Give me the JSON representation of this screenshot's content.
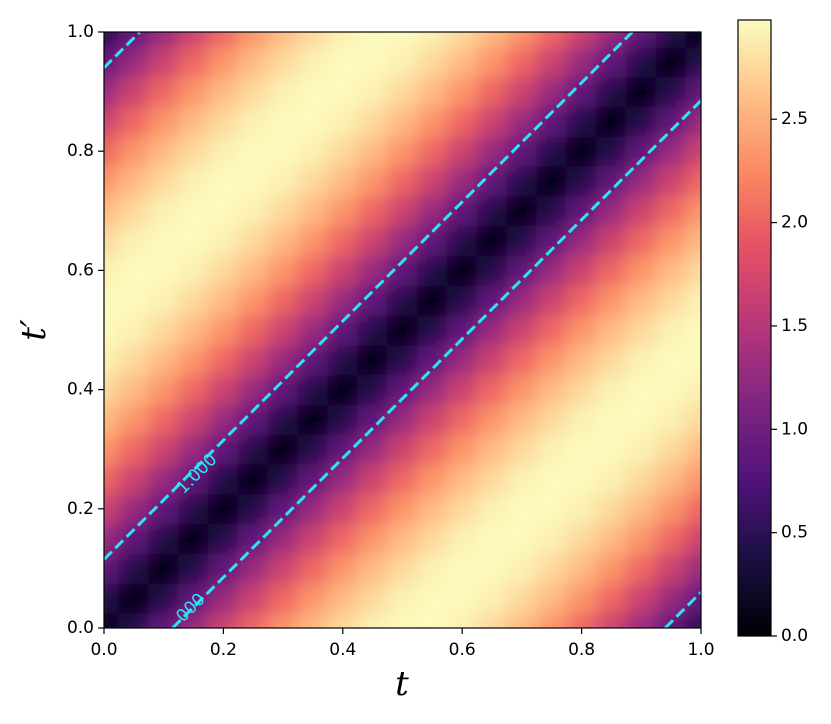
{
  "chart_data": {
    "type": "heatmap",
    "xlabel": "t",
    "ylabel": "t′",
    "x": [
      0,
      0.05,
      0.1,
      0.15,
      0.2,
      0.25,
      0.3,
      0.35,
      0.4,
      0.45,
      0.5,
      0.55,
      0.6,
      0.65,
      0.7,
      0.75,
      0.8,
      0.85,
      0.9,
      0.95,
      1
    ],
    "y": [
      0,
      0.05,
      0.1,
      0.15,
      0.2,
      0.25,
      0.3,
      0.35,
      0.4,
      0.45,
      0.5,
      0.55,
      0.6,
      0.65,
      0.7,
      0.75,
      0.8,
      0.85,
      0.9,
      0.95,
      1
    ],
    "z": [
      [
        0,
        0.44,
        0.88,
        1.29,
        1.67,
        2.02,
        2.32,
        2.57,
        2.76,
        2.9,
        2.96,
        2.96,
        2.9,
        2.76,
        2.57,
        2.32,
        2.02,
        1.67,
        1.29,
        0.88,
        0.44
      ],
      [
        0.44,
        0,
        0.44,
        0.88,
        1.29,
        1.67,
        2.02,
        2.32,
        2.57,
        2.76,
        2.9,
        2.96,
        2.96,
        2.9,
        2.76,
        2.57,
        2.32,
        2.02,
        1.67,
        1.29,
        0.88
      ],
      [
        0.88,
        0.44,
        0,
        0.44,
        0.88,
        1.29,
        1.67,
        2.02,
        2.32,
        2.57,
        2.76,
        2.9,
        2.96,
        2.96,
        2.9,
        2.76,
        2.57,
        2.32,
        2.02,
        1.67,
        1.29
      ],
      [
        1.29,
        0.88,
        0.44,
        0,
        0.44,
        0.88,
        1.29,
        1.67,
        2.02,
        2.32,
        2.57,
        2.76,
        2.9,
        2.96,
        2.96,
        2.9,
        2.76,
        2.57,
        2.32,
        2.02,
        1.67
      ],
      [
        1.67,
        1.29,
        0.88,
        0.44,
        0,
        0.44,
        0.88,
        1.29,
        1.67,
        2.02,
        2.32,
        2.57,
        2.76,
        2.9,
        2.96,
        2.96,
        2.9,
        2.76,
        2.57,
        2.32,
        2.02
      ],
      [
        2.02,
        1.67,
        1.29,
        0.88,
        0.44,
        0,
        0.44,
        0.88,
        1.29,
        1.67,
        2.02,
        2.32,
        2.57,
        2.76,
        2.9,
        2.96,
        2.96,
        2.9,
        2.76,
        2.57,
        2.32
      ],
      [
        2.32,
        2.02,
        1.67,
        1.29,
        0.88,
        0.44,
        0,
        0.44,
        0.88,
        1.29,
        1.67,
        2.02,
        2.32,
        2.57,
        2.76,
        2.9,
        2.96,
        2.96,
        2.9,
        2.76,
        2.57
      ],
      [
        2.57,
        2.32,
        2.02,
        1.67,
        1.29,
        0.88,
        0.44,
        0,
        0.44,
        0.88,
        1.29,
        1.67,
        2.02,
        2.32,
        2.57,
        2.76,
        2.9,
        2.96,
        2.96,
        2.9,
        2.76
      ],
      [
        2.76,
        2.57,
        2.32,
        2.02,
        1.67,
        1.29,
        0.88,
        0.44,
        0,
        0.44,
        0.88,
        1.29,
        1.67,
        2.02,
        2.32,
        2.57,
        2.76,
        2.9,
        2.96,
        2.96,
        2.9
      ],
      [
        2.9,
        2.76,
        2.57,
        2.32,
        2.02,
        1.67,
        1.29,
        0.88,
        0.44,
        0,
        0.44,
        0.88,
        1.29,
        1.67,
        2.02,
        2.32,
        2.57,
        2.76,
        2.9,
        2.96,
        2.96
      ],
      [
        2.96,
        2.9,
        2.76,
        2.57,
        2.32,
        2.02,
        1.67,
        1.29,
        0.88,
        0.44,
        0,
        0.44,
        0.88,
        1.29,
        1.67,
        2.02,
        2.32,
        2.57,
        2.76,
        2.9,
        2.96
      ],
      [
        2.96,
        2.96,
        2.9,
        2.76,
        2.57,
        2.32,
        2.02,
        1.67,
        1.29,
        0.88,
        0.44,
        0,
        0.44,
        0.88,
        1.29,
        1.67,
        2.02,
        2.32,
        2.57,
        2.76,
        2.9
      ],
      [
        2.9,
        2.96,
        2.96,
        2.9,
        2.76,
        2.57,
        2.32,
        2.02,
        1.67,
        1.29,
        0.88,
        0.44,
        0,
        0.44,
        0.88,
        1.29,
        1.67,
        2.02,
        2.32,
        2.57,
        2.76
      ],
      [
        2.76,
        2.9,
        2.96,
        2.96,
        2.9,
        2.76,
        2.57,
        2.32,
        2.02,
        1.67,
        1.29,
        0.88,
        0.44,
        0,
        0.44,
        0.88,
        1.29,
        1.67,
        2.02,
        2.32,
        2.57
      ],
      [
        2.57,
        2.76,
        2.9,
        2.96,
        2.96,
        2.9,
        2.76,
        2.57,
        2.32,
        2.02,
        1.67,
        1.29,
        0.88,
        0.44,
        0,
        0.44,
        0.88,
        1.29,
        1.67,
        2.02,
        2.32
      ],
      [
        2.32,
        2.57,
        2.76,
        2.9,
        2.96,
        2.96,
        2.9,
        2.76,
        2.57,
        2.32,
        2.02,
        1.67,
        1.29,
        0.88,
        0.44,
        0,
        0.44,
        0.88,
        1.29,
        1.67,
        2.02
      ],
      [
        2.02,
        2.32,
        2.57,
        2.76,
        2.9,
        2.96,
        2.96,
        2.9,
        2.76,
        2.57,
        2.32,
        2.02,
        1.67,
        1.29,
        0.88,
        0.44,
        0,
        0.44,
        0.88,
        1.29,
        1.67
      ],
      [
        1.67,
        2.02,
        2.32,
        2.57,
        2.76,
        2.9,
        2.96,
        2.96,
        2.9,
        2.76,
        2.57,
        2.32,
        2.02,
        1.67,
        1.29,
        0.88,
        0.44,
        0,
        0.44,
        0.88,
        1.29
      ],
      [
        1.29,
        1.67,
        2.02,
        2.32,
        2.57,
        2.76,
        2.9,
        2.96,
        2.96,
        2.9,
        2.76,
        2.57,
        2.32,
        2.02,
        1.67,
        1.29,
        0.88,
        0.44,
        0,
        0.44,
        0.88
      ],
      [
        0.88,
        1.29,
        1.67,
        2.02,
        2.32,
        2.57,
        2.76,
        2.9,
        2.96,
        2.96,
        2.9,
        2.76,
        2.57,
        2.32,
        2.02,
        1.67,
        1.29,
        0.88,
        0.44,
        0,
        0.44
      ],
      [
        0.44,
        0.88,
        1.29,
        1.67,
        2.02,
        2.32,
        2.57,
        2.76,
        2.9,
        2.96,
        2.96,
        2.9,
        2.76,
        2.57,
        2.32,
        2.02,
        1.67,
        1.29,
        0.88,
        0.44,
        0
      ]
    ],
    "colormap": "magma",
    "clim": [
      0,
      2.98
    ],
    "xlim": [
      0,
      1
    ],
    "ylim": [
      0,
      1
    ],
    "xticks": [
      {
        "value": 0,
        "label": "0.0"
      },
      0.2,
      0.4,
      0.6,
      0.8,
      {
        "value": 1,
        "label": "1.0"
      }
    ],
    "yticks": [
      {
        "value": 0,
        "label": "0.0"
      },
      0.2,
      0.4,
      0.6,
      0.8,
      {
        "value": 1,
        "label": "1.0"
      }
    ],
    "cticks": [
      {
        "value": 0,
        "label": "0.0"
      },
      0.5,
      {
        "value": 1,
        "label": "1.0"
      },
      1.5,
      {
        "value": 2,
        "label": "2.0"
      },
      2.5
    ],
    "contours": {
      "color": "#2ee3f2",
      "lines": [
        {
          "x": [
            0,
            0.885
          ],
          "y": [
            0.115,
            1
          ]
        },
        {
          "x": [
            0.115,
            1
          ],
          "y": [
            0,
            0.885
          ]
        },
        {
          "x": [
            0,
            0.06
          ],
          "y": [
            0.94,
            1
          ]
        },
        {
          "x": [
            0.94,
            1
          ],
          "y": [
            0,
            0.06
          ]
        }
      ],
      "labels": [
        "1.000",
        "000"
      ]
    }
  }
}
